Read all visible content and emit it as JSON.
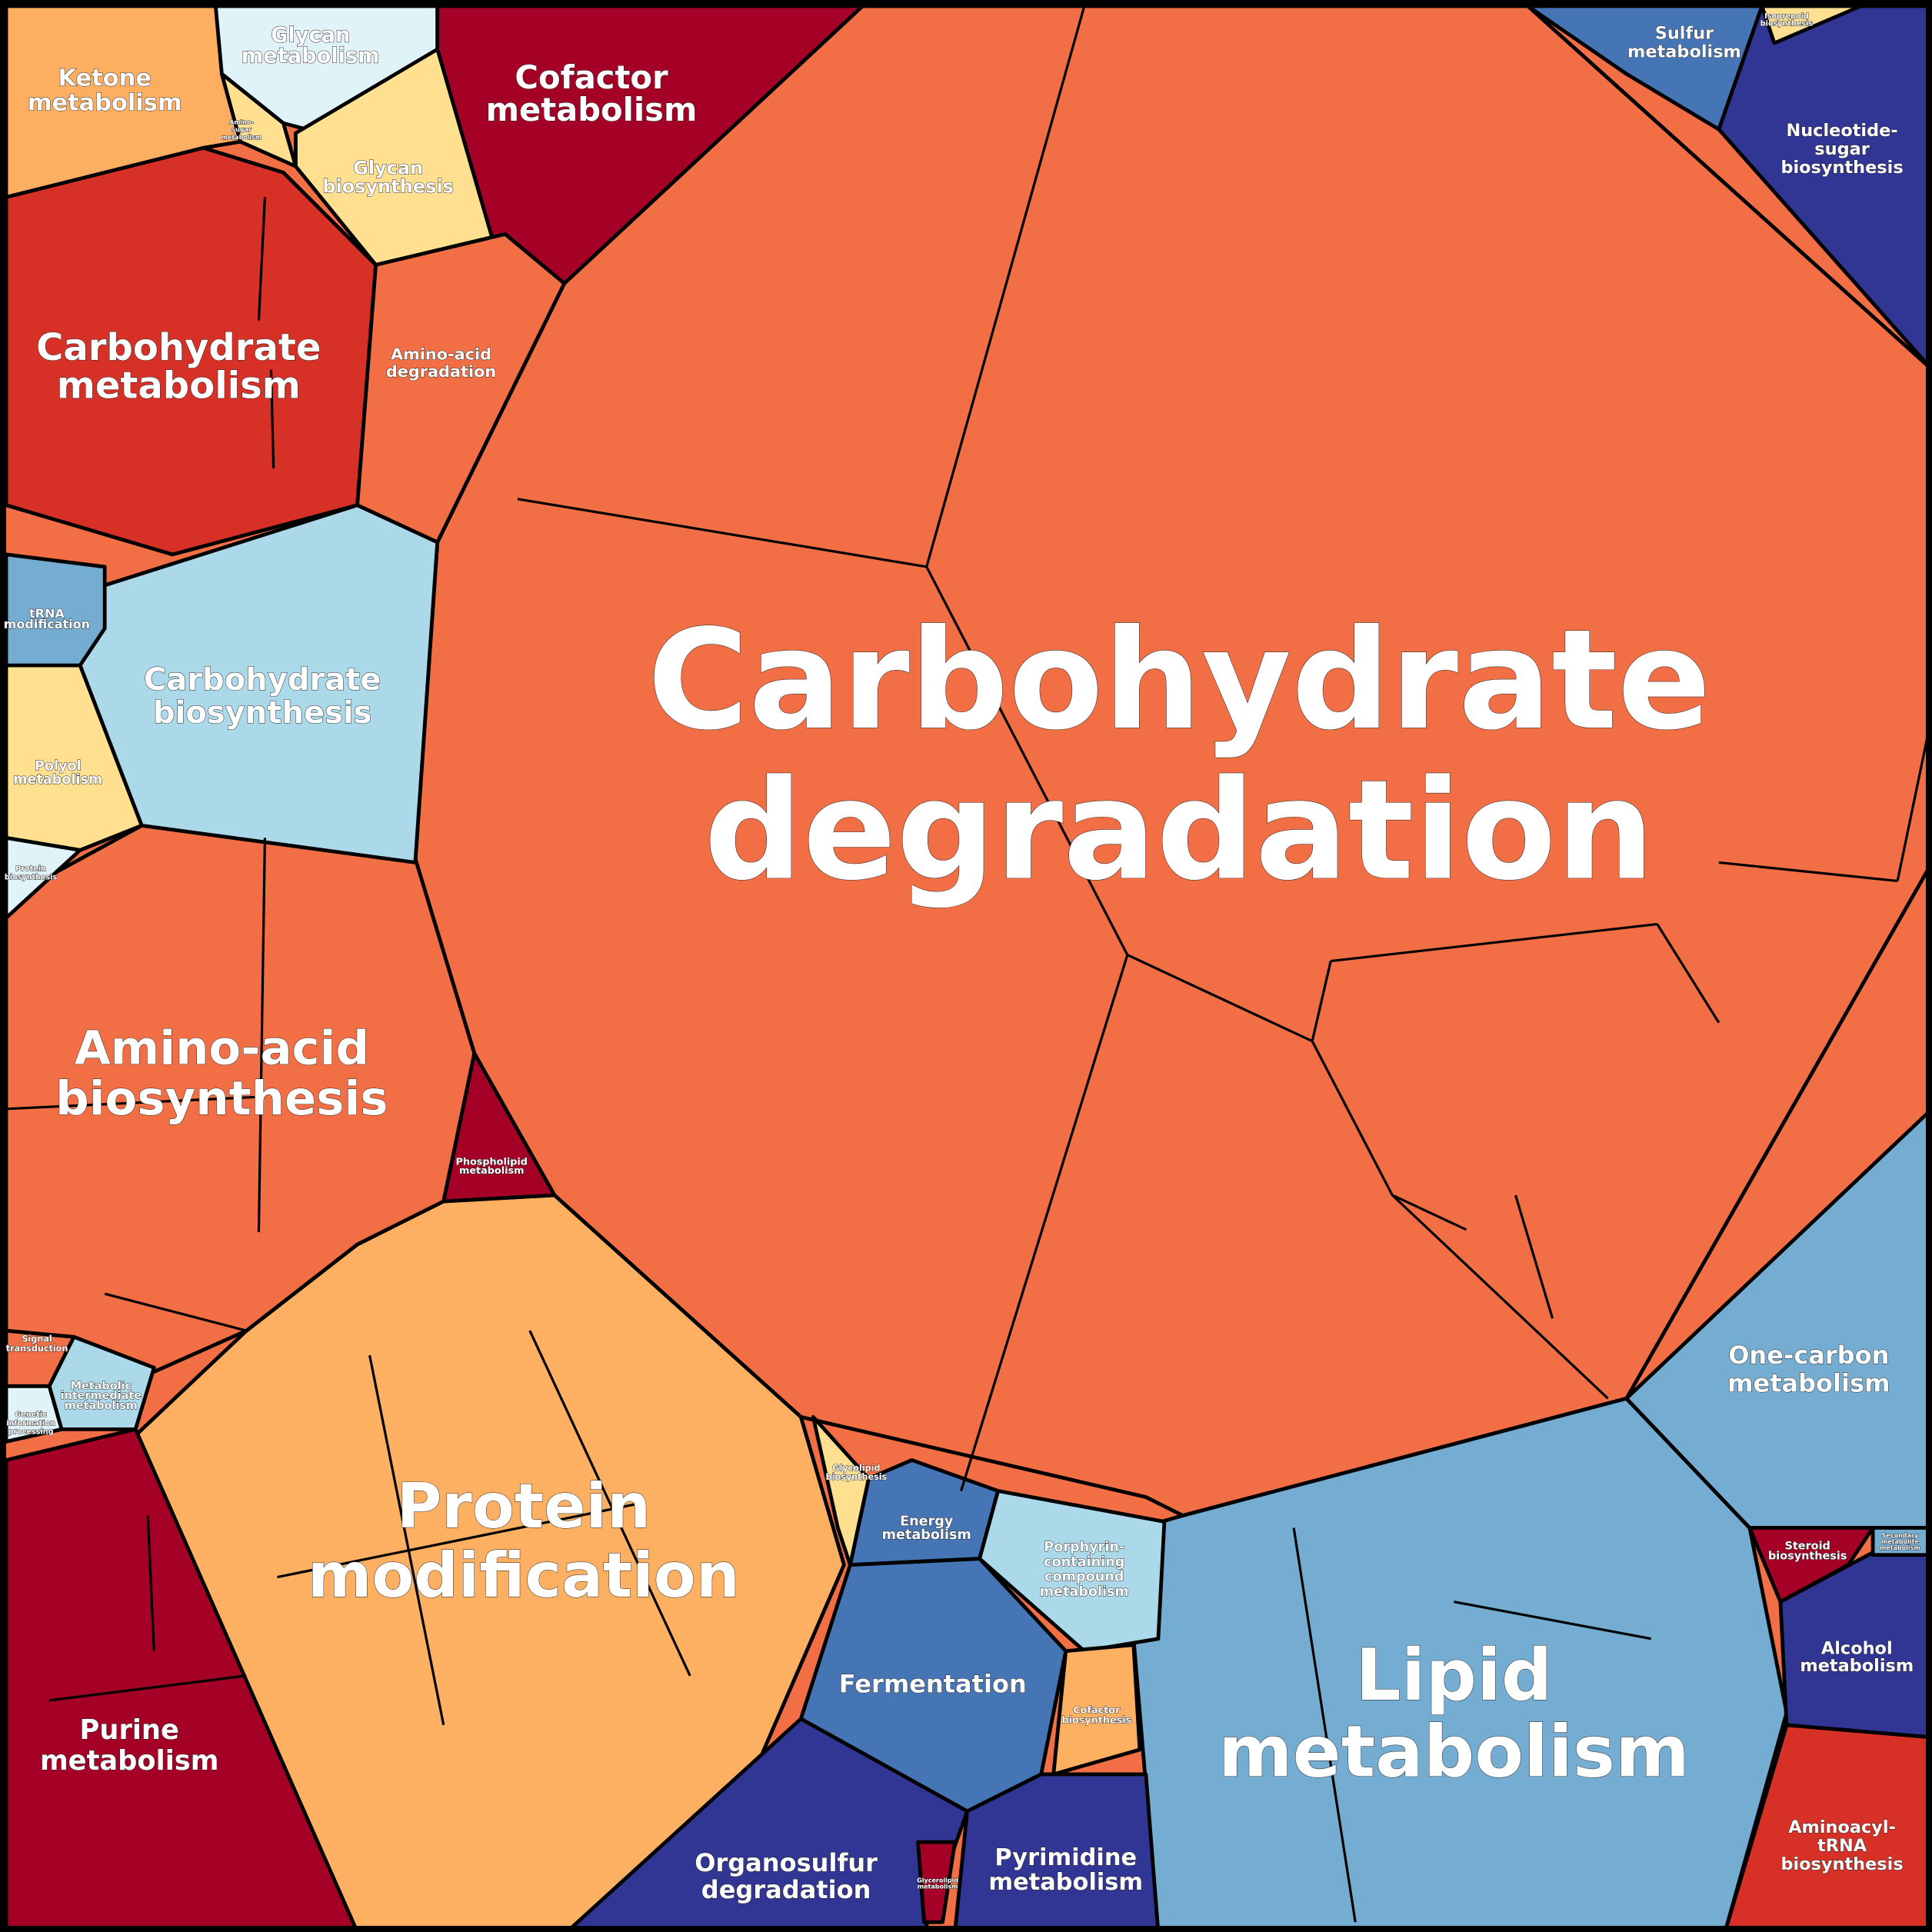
{
  "cells": [
    {
      "label": [
        "Carbohydrate",
        "degradation"
      ]
    },
    {
      "label": [
        "Protein",
        "modification"
      ]
    },
    {
      "label": [
        "Lipid",
        "metabolism"
      ]
    },
    {
      "label": [
        "One-carbon",
        "metabolism"
      ]
    },
    {
      "label": [
        "Amino-acid",
        "biosynthesis"
      ]
    },
    {
      "label": [
        "Carbohydrate",
        "biosynthesis"
      ]
    },
    {
      "label": [
        "Carbohydrate",
        "metabolism"
      ]
    },
    {
      "label": [
        "Ketone",
        "metabolism"
      ]
    },
    {
      "label": [
        "Glycan",
        "metabolism"
      ]
    },
    {
      "label": [
        "Glycan",
        "biosynthesis"
      ]
    },
    {
      "label": [
        "Cofactor",
        "metabolism"
      ]
    },
    {
      "label": [
        "Amino-acid",
        "degradation"
      ]
    },
    {
      "label": [
        "Sulfur",
        "metabolism"
      ]
    },
    {
      "label": [
        "Nucleotide-",
        "sugar",
        "biosynthesis"
      ]
    },
    {
      "label": [
        "Fermentation"
      ]
    },
    {
      "label": [
        "Organosulfur",
        "degradation"
      ]
    },
    {
      "label": [
        "Pyrimidine",
        "metabolism"
      ]
    },
    {
      "label": [
        "Purine",
        "metabolism"
      ]
    },
    {
      "label": [
        "Aminoacyl-",
        "tRNA",
        "biosynthesis"
      ]
    },
    {
      "label": [
        "Alcohol",
        "metabolism"
      ]
    },
    {
      "label": [
        "Steroid",
        "biosynthesis"
      ]
    },
    {
      "label": [
        "Energy",
        "metabolism"
      ]
    },
    {
      "label": [
        "Porphyrin-",
        "containing",
        "compound",
        "metabolism"
      ]
    },
    {
      "label": [
        "Cofactor",
        "biosynthesis"
      ]
    },
    {
      "label": [
        "Phospholipid",
        "metabolism"
      ]
    },
    {
      "label": [
        "Polyol",
        "metabolism"
      ]
    },
    {
      "label": [
        "tRNA",
        "modification"
      ]
    },
    {
      "label": [
        "Amino-",
        "sugar",
        "metabolism"
      ]
    },
    {
      "label": [
        "Protein",
        "biosynthesis"
      ]
    },
    {
      "label": [
        "Signal",
        "transduction"
      ]
    },
    {
      "label": [
        "Metabolic",
        "intermediate",
        "metabolism"
      ]
    },
    {
      "label": [
        "Genetic",
        "information",
        "processing"
      ]
    },
    {
      "label": [
        "Glycolipid",
        "biosynthesis"
      ]
    },
    {
      "label": [
        "Isoprenoid",
        "biosynthesis"
      ]
    },
    {
      "label": [
        "Secondary",
        "metabolite",
        "metabolism"
      ]
    },
    {
      "label": [
        "Glycerolipid",
        "metabolism"
      ]
    }
  ]
}
